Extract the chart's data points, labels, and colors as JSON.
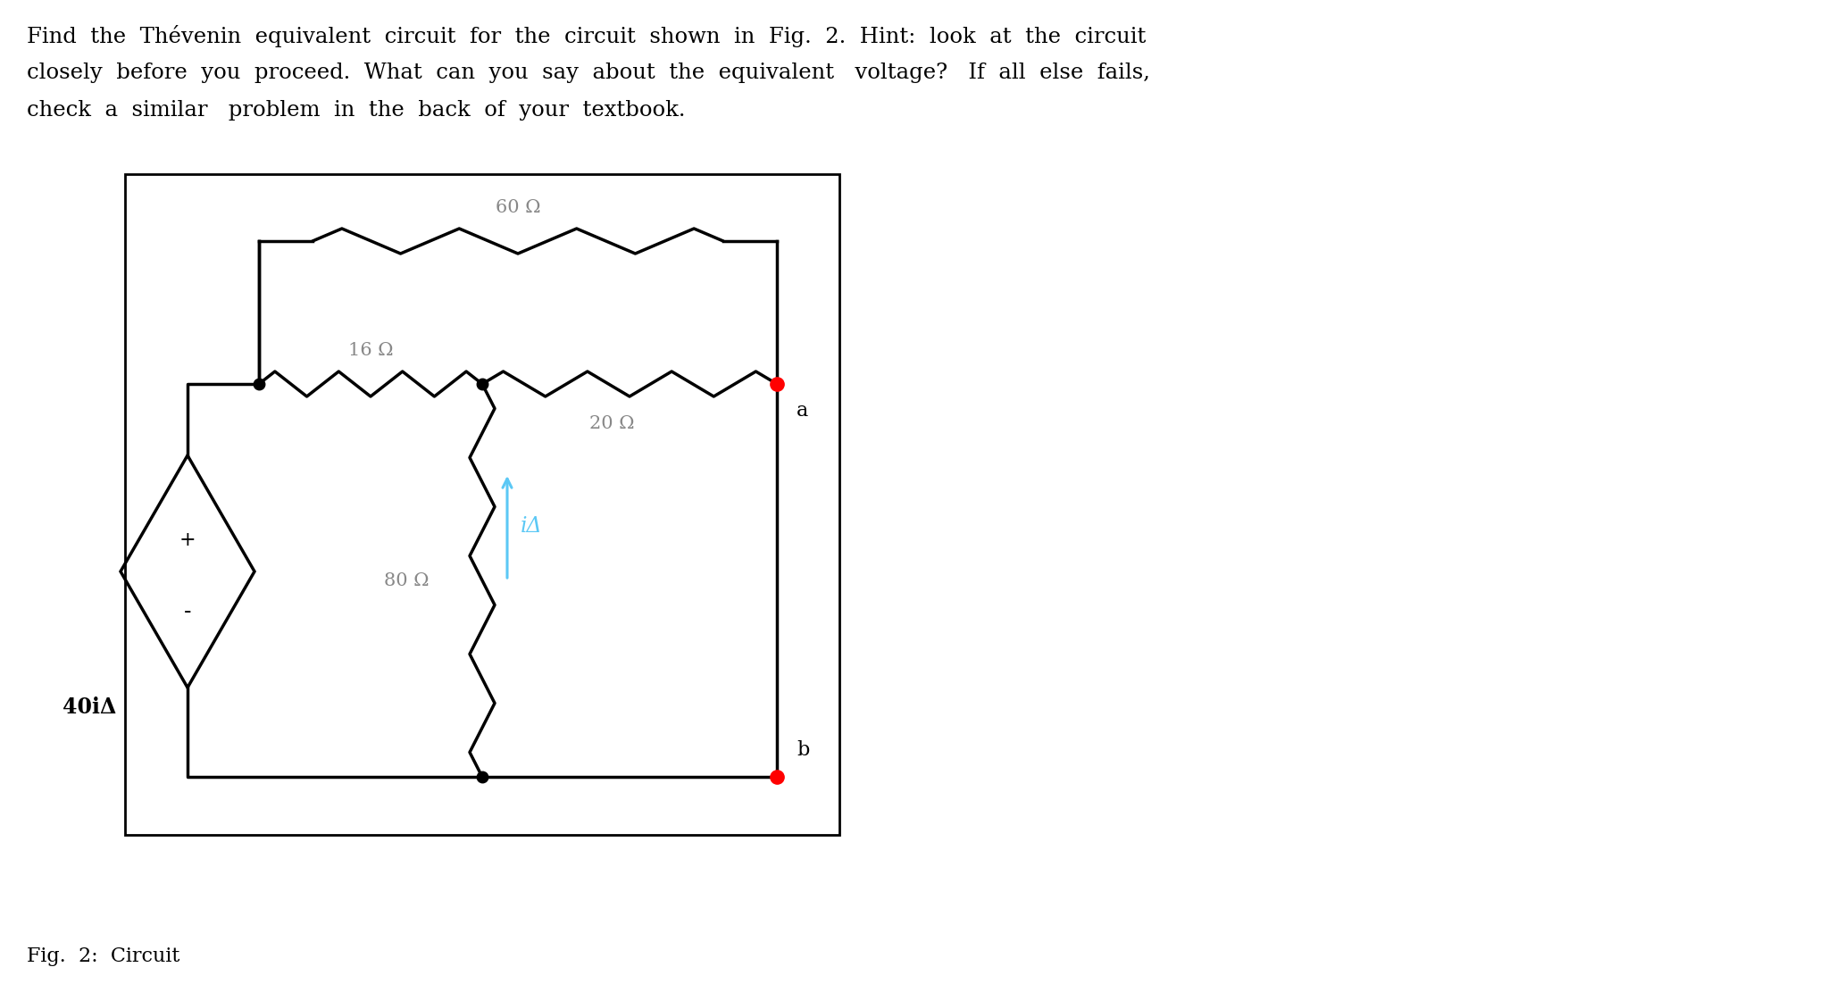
{
  "title_line1": "Find the Thévenin  equivalent  circuit  for  the  circuit  shown  in  Fig.  2.  Hint:  look  at  the  circuit",
  "title_line2": "closely  before  you  proceed.  What  can  you  say  about  the  equivalent   voltage?   If  all  else  fails,",
  "title_line3": "check  a  similar   problem  in  the  back  of  your  textbook.",
  "caption": "Fig.  2:  Circuit",
  "bg_color": "#ffffff",
  "box_color": "#000000",
  "wire_color": "#000000",
  "resistor_color": "#000000",
  "dot_color": "#000000",
  "terminal_color": "#ff0000",
  "arrow_color": "#5bc8f5",
  "label_16": "16 Ω",
  "label_60": "60 Ω",
  "label_20": "20 Ω",
  "label_80": "80 Ω",
  "label_source": "40iΔ",
  "label_ia": "iΔ",
  "plus_label": "+",
  "minus_label": "-",
  "terminal_a": "a",
  "terminal_b": "b"
}
